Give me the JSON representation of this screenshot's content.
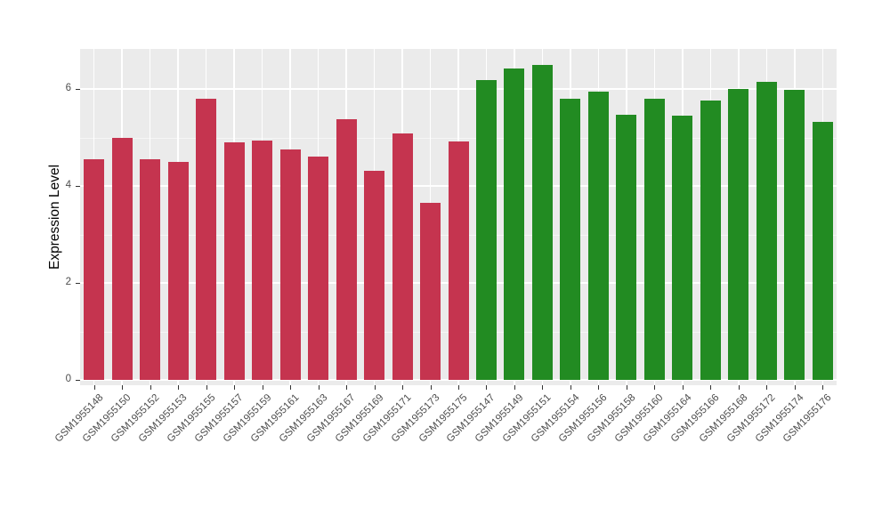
{
  "chart_data": {
    "type": "bar",
    "title": "",
    "xlabel": "",
    "ylabel": "Expression Level",
    "ylim": [
      0,
      6.83
    ],
    "yticks_major": [
      0,
      2,
      4,
      6
    ],
    "yticks_minor": [
      1,
      3,
      5
    ],
    "grid": "on",
    "legend": "none",
    "panel_background": "#EBEBEB",
    "group_colors": {
      "group1": "#C5344F",
      "group2": "#228B22"
    },
    "categories": [
      "GSM1955148",
      "GSM1955150",
      "GSM1955152",
      "GSM1955153",
      "GSM1955155",
      "GSM1955157",
      "GSM1955159",
      "GSM1955161",
      "GSM1955163",
      "GSM1955167",
      "GSM1955169",
      "GSM1955171",
      "GSM1955173",
      "GSM1955175",
      "GSM1955147",
      "GSM1955149",
      "GSM1955151",
      "GSM1955154",
      "GSM1955156",
      "GSM1955158",
      "GSM1955160",
      "GSM1955164",
      "GSM1955166",
      "GSM1955168",
      "GSM1955172",
      "GSM1955174",
      "GSM1955176"
    ],
    "values": [
      4.55,
      5.0,
      4.55,
      4.5,
      5.8,
      4.9,
      4.93,
      4.75,
      4.6,
      5.37,
      4.32,
      5.08,
      3.65,
      4.92,
      6.18,
      6.42,
      6.5,
      5.8,
      5.95,
      5.47,
      5.8,
      5.45,
      5.77,
      6.0,
      6.15,
      5.98,
      5.33
    ],
    "groups": [
      "group1",
      "group1",
      "group1",
      "group1",
      "group1",
      "group1",
      "group1",
      "group1",
      "group1",
      "group1",
      "group1",
      "group1",
      "group1",
      "group1",
      "group2",
      "group2",
      "group2",
      "group2",
      "group2",
      "group2",
      "group2",
      "group2",
      "group2",
      "group2",
      "group2",
      "group2",
      "group2"
    ]
  }
}
